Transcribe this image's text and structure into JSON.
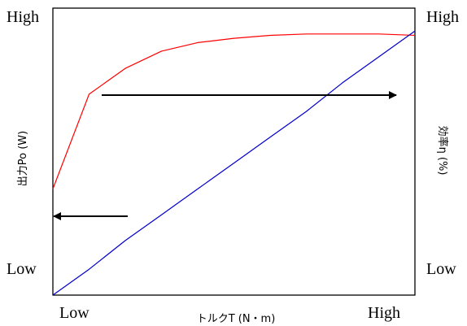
{
  "chart_data": {
    "type": "line",
    "title": "",
    "xlabel": "トルクT (N・m)",
    "ylabel_left": "出力Po (W)",
    "ylabel_right": "効率η (%)",
    "x_ticks": [
      "Low",
      "High"
    ],
    "y_left_ticks": [
      "High",
      "Low"
    ],
    "y_right_ticks": [
      "High",
      "Low"
    ],
    "grid": false,
    "legend": "none",
    "x": [
      0,
      0.1,
      0.2,
      0.3,
      0.4,
      0.5,
      0.6,
      0.7,
      0.8,
      0.9,
      1.0
    ],
    "series": [
      {
        "axis": "right",
        "color": "#ff0000",
        "values": [
          0.37,
          0.7,
          0.79,
          0.85,
          0.88,
          0.895,
          0.905,
          0.91,
          0.91,
          0.91,
          0.905
        ]
      },
      {
        "axis": "left",
        "color": "#0000cc",
        "values": [
          0.0,
          0.09,
          0.19,
          0.28,
          0.37,
          0.46,
          0.55,
          0.64,
          0.74,
          0.83,
          0.92
        ]
      }
    ],
    "annotations": [
      {
        "type": "arrow",
        "direction": "right",
        "meaning": "efficiency curve refers to right axis"
      },
      {
        "type": "arrow",
        "direction": "left",
        "meaning": "output line refers to left axis"
      }
    ],
    "colors": {
      "efficiency": "#ff0000",
      "output": "#0000cc",
      "frame": "#000000"
    }
  }
}
